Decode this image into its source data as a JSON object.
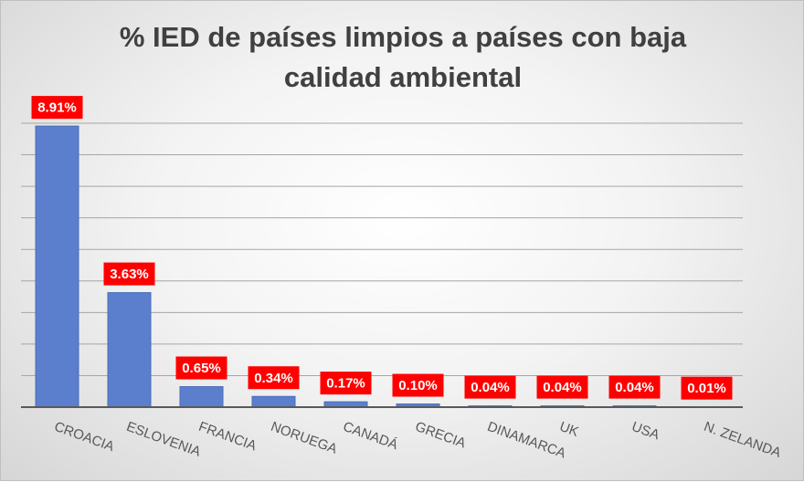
{
  "chart_data": {
    "type": "bar",
    "title": "% IED de países limpios a países con baja calidad ambiental",
    "xlabel": "",
    "ylabel": "",
    "categories": [
      "CROACIA",
      "ESLOVENIA",
      "FRANCIA",
      "NORUEGA",
      "CANADÁ",
      "GRECIA",
      "DINAMARCA",
      "UK",
      "USA",
      "N. ZELANDA"
    ],
    "values": [
      8.91,
      3.63,
      0.65,
      0.34,
      0.17,
      0.1,
      0.04,
      0.04,
      0.04,
      0.01
    ],
    "data_labels": [
      "8.91%",
      "3.63%",
      "0.65%",
      "0.34%",
      "0.17%",
      "0.10%",
      "0.04%",
      "0.04%",
      "0.04%",
      "0.01%"
    ],
    "ylim": [
      0,
      9
    ],
    "grid": true,
    "legend": "none",
    "colors": {
      "bar": "#5b7fcc",
      "bar_edge": "#4a6cb8",
      "label_bg": "#ff0000",
      "label_text": "#ffffff",
      "gridline": "#a6a6a6",
      "axis": "#595959",
      "tick_text": "#595959",
      "title_text": "#404040"
    }
  }
}
